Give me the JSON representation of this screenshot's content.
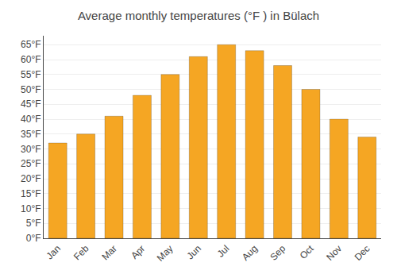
{
  "chart_data": {
    "type": "bar",
    "title": "Average monthly temperatures (°F ) in Bülach",
    "categories": [
      "Jan",
      "Feb",
      "Mar",
      "Apr",
      "May",
      "Jun",
      "Jul",
      "Aug",
      "Sep",
      "Oct",
      "Nov",
      "Dec"
    ],
    "values": [
      32,
      35,
      41,
      48,
      55,
      61,
      65,
      63,
      58,
      50,
      40,
      34
    ],
    "color": "#F5A623",
    "ylim": [
      0,
      68
    ],
    "yticks": [
      {
        "value": 0,
        "label": "0°F"
      },
      {
        "value": 5,
        "label": "5°F"
      },
      {
        "value": 10,
        "label": "10°F"
      },
      {
        "value": 15,
        "label": "15°F"
      },
      {
        "value": 20,
        "label": "20°F"
      },
      {
        "value": 25,
        "label": "25°F"
      },
      {
        "value": 30,
        "label": "30°F"
      },
      {
        "value": 35,
        "label": "35°F"
      },
      {
        "value": 40,
        "label": "40°F"
      },
      {
        "value": 45,
        "label": "45°F"
      },
      {
        "value": 50,
        "label": "50°F"
      },
      {
        "value": 55,
        "label": "55°F"
      },
      {
        "value": 60,
        "label": "60°F"
      },
      {
        "value": 65,
        "label": "65°F"
      }
    ],
    "grid": true
  }
}
